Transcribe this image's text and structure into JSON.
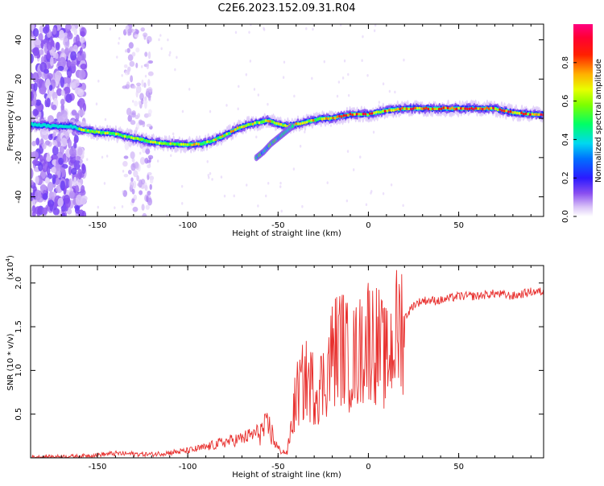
{
  "title": "C2E6.2023.152.09.31.R04",
  "chart_data": [
    {
      "type": "heatmap",
      "xlabel": "Height of straight line (km)",
      "ylabel": "Frequency (Hz)",
      "xlim": [
        -187,
        97
      ],
      "ylim": [
        -50,
        48
      ],
      "xticks": [
        -150,
        -100,
        -50,
        0,
        50
      ],
      "yticks": [
        -40,
        -20,
        0,
        20,
        40
      ],
      "colorbar": {
        "label": "Normalized spectral amplitude",
        "range": [
          0,
          1
        ],
        "ticks": [
          "0.0",
          "0.2",
          "0.4",
          "0.6",
          "0.8"
        ],
        "colors": [
          "#ffffff",
          "#c9a8f5",
          "#7a3ff0",
          "#2b1aff",
          "#0090ff",
          "#00e6e6",
          "#00ff66",
          "#b4ff00",
          "#ffff00",
          "#ff9900",
          "#ff0000",
          "#ff0066"
        ]
      },
      "ridge": {
        "x": [
          -187,
          -175,
          -165,
          -158,
          -150,
          -140,
          -130,
          -120,
          -110,
          -100,
          -92,
          -85,
          -78,
          -72,
          -66,
          -60,
          -55,
          -50,
          -45,
          -40,
          -35,
          -30,
          -25,
          -20,
          -15,
          -10,
          -5,
          0,
          5,
          10,
          20,
          30,
          40,
          50,
          60,
          70,
          80,
          90,
          97
        ],
        "frequency_hz": [
          -3,
          -4,
          -4,
          -6,
          -7,
          -8,
          -10,
          -12,
          -13,
          -13.5,
          -13,
          -11,
          -8,
          -5,
          -3,
          -2,
          -1,
          -3,
          -4,
          -3,
          -2,
          -1,
          0,
          0,
          1,
          2,
          2,
          2,
          3,
          4,
          5,
          5,
          5,
          5,
          5,
          5,
          3,
          2,
          2
        ]
      },
      "secondary_branch": {
        "x": [
          -62,
          -58,
          -54,
          -50,
          -46,
          -42
        ],
        "frequency_hz": [
          -20,
          -17,
          -13,
          -10,
          -7,
          -4
        ]
      }
    },
    {
      "type": "line",
      "xlabel": "Height of straight line (km)",
      "ylabel": "SNR (10 * v/v)",
      "yscale_label": "(x10",
      "yscale_exp": "4",
      "yscale_close": ")",
      "xlim": [
        -187,
        97
      ],
      "ylim": [
        0,
        2.2
      ],
      "xticks": [
        -150,
        -100,
        -50,
        0,
        50
      ],
      "yticks": [
        "0.5",
        "1.0",
        "1.5",
        "2.0"
      ],
      "color": "#e8312f",
      "series": [
        {
          "x": [
            -187,
            -160,
            -140,
            -120,
            -100,
            -90,
            -80,
            -70,
            -60,
            -55,
            -50,
            -45,
            -40,
            -35,
            -30,
            -25,
            -20,
            -15,
            -10,
            -5,
            0,
            5,
            10,
            15,
            20,
            25,
            30,
            40,
            50,
            60,
            70,
            80,
            90,
            97
          ],
          "values": [
            0.01,
            0.02,
            0.05,
            0.04,
            0.08,
            0.12,
            0.18,
            0.22,
            0.3,
            0.35,
            0.1,
            0.05,
            0.7,
            0.9,
            0.8,
            0.85,
            1.2,
            1.3,
            1.1,
            1.2,
            1.4,
            1.3,
            1.1,
            1.4,
            1.6,
            1.75,
            1.8,
            1.8,
            1.85,
            1.85,
            1.88,
            1.85,
            1.9,
            1.9
          ]
        }
      ]
    }
  ]
}
